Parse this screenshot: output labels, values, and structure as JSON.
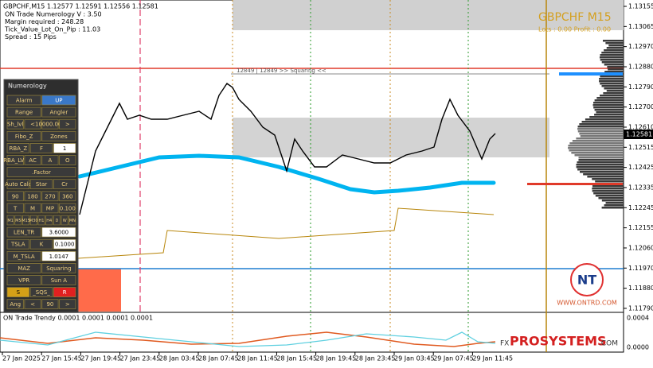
{
  "window": {
    "symbol_info": "GBPCHF,M15  1.12577 1.12591 1.12556 1.12581",
    "info_lines": [
      "ON Trade Numerology V : 3.50",
      "Margin required : 248.28",
      "Tick_Value_Lot_On_Pip : 11.03",
      "Spread : 15  Pips"
    ]
  },
  "header": {
    "title": "GBPCHF M15",
    "stats": "Lots : 0.00  Profit : 0.00"
  },
  "level_label": "12849 | 12849 >> Squaring <<",
  "price_axis": {
    "labels": [
      "1.13155",
      "1.13065",
      "1.12970",
      "1.12880",
      "1.12790",
      "1.12700",
      "1.12610",
      "1.12515",
      "1.12425",
      "1.12335",
      "1.12245",
      "1.12155",
      "1.12060",
      "1.11970",
      "1.11880",
      "1.11790"
    ],
    "current": "1.12581"
  },
  "time_axis": {
    "labels": [
      "27 Jan 2025",
      "27 Jan 15:45",
      "27 Jan 19:45",
      "27 Jan 23:45",
      "28 Jan 03:45",
      "28 Jan 07:45",
      "28 Jan 11:45",
      "28 Jan 15:45",
      "28 Jan 19:45",
      "28 Jan 23:45",
      "29 Jan 03:45",
      "29 Jan 07:45",
      "29 Jan 11:45"
    ]
  },
  "panel": {
    "title": "Numerology",
    "rows": [
      [
        "Alarm",
        "UP"
      ],
      [
        "Range",
        "Angler"
      ],
      [
        "Sh_lvl",
        "<",
        "10000.000",
        ">"
      ],
      [
        "Fibo_Z",
        "Zones"
      ],
      [
        "RBA_Z",
        "F",
        "1"
      ],
      [
        "RBA_LVL",
        "AC",
        "A",
        "O"
      ],
      [
        ".Factor"
      ],
      [
        "Auto Calc",
        "Star",
        "Cr"
      ],
      [
        "90",
        "180",
        "270",
        "360"
      ],
      [
        "T",
        "M",
        "MP",
        "0.100"
      ],
      [
        "M1",
        "M5",
        "M15",
        "M30",
        "H1",
        "H4",
        "D",
        "W",
        "MN"
      ],
      [
        "LEN_TR",
        "3.6000"
      ],
      [
        "TSLA",
        "K",
        "0.1000"
      ],
      [
        "M_TSLA",
        "1.0147"
      ],
      [
        "MAZ",
        "Squaring"
      ],
      [
        "VPR",
        "Sun A"
      ],
      [
        "S",
        "_SQS_",
        "R"
      ],
      [
        "Ang",
        "<",
        "90",
        ">"
      ]
    ]
  },
  "indicator": {
    "title": "ON Trade Trendy 0.0001 0.0001 0.0001 0.0001",
    "axis_labels": [
      "0.0004",
      "0.0000"
    ]
  },
  "logo": {
    "site": "WWW.ONTRD.COM",
    "brand_prefix": "FX",
    "brand": "PROSYSTEMS",
    "brand_suffix": ".COM"
  }
}
